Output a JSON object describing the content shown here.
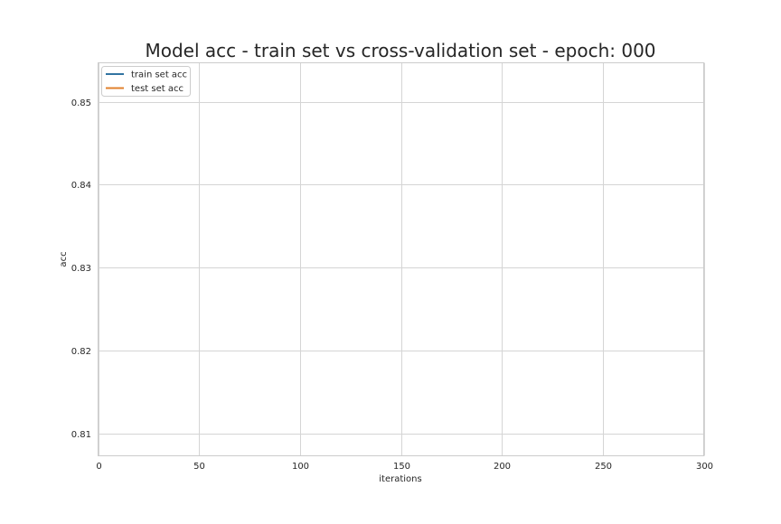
{
  "chart_data": {
    "type": "line",
    "title": "Model acc - train set vs cross-validation set - epoch: 000",
    "xlabel": "iterations",
    "ylabel": "acc",
    "xlim": [
      0,
      300
    ],
    "ylim": [
      0.8073,
      0.8547
    ],
    "x_ticks": [
      0,
      50,
      100,
      150,
      200,
      250,
      300
    ],
    "y_ticks": [
      0.81,
      0.82,
      0.83,
      0.84,
      0.85
    ],
    "x_tick_labels": [
      "0",
      "50",
      "100",
      "150",
      "200",
      "250",
      "300"
    ],
    "y_tick_labels": [
      "0.81",
      "0.82",
      "0.83",
      "0.84",
      "0.85"
    ],
    "grid": true,
    "legend_position": "top-left",
    "series": [
      {
        "name": "train set acc",
        "color": "#3274a1",
        "x": [],
        "values": []
      },
      {
        "name": "test set acc",
        "color": "#e1812c",
        "x": [],
        "values": []
      }
    ]
  },
  "colors": {
    "grid": "#d5d5d5",
    "frame": "#cccccc",
    "text": "#262626"
  }
}
